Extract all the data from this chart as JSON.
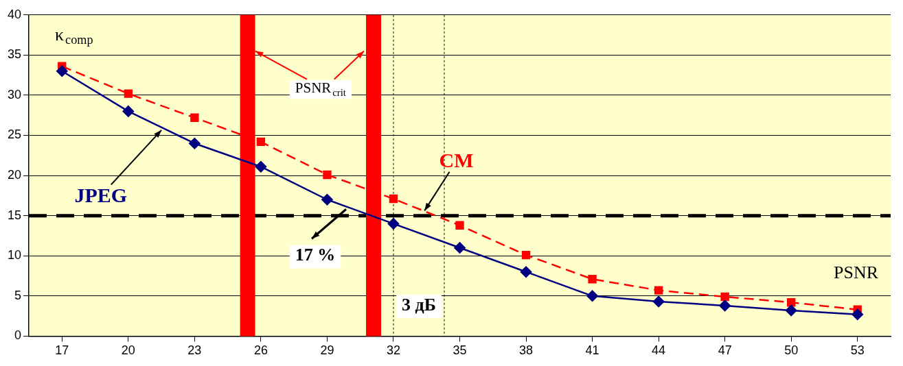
{
  "chart_data": {
    "type": "line",
    "xlabel": "PSNR",
    "ylabel": "κ$_{comp}$",
    "x": [
      17,
      20,
      23,
      26,
      29,
      32,
      35,
      38,
      41,
      44,
      47,
      50,
      53
    ],
    "series": [
      {
        "name": "JPEG",
        "color": "#000080",
        "marker": "diamond",
        "line_style": "solid",
        "values": [
          33,
          28,
          24,
          21.1,
          17,
          14,
          11,
          8,
          5,
          4.3,
          3.8,
          3.2,
          2.7
        ]
      },
      {
        "name": "CM",
        "color": "#ff0000",
        "marker": "square",
        "line_style": "dashed",
        "values": [
          33.6,
          30.2,
          27.2,
          24.2,
          20.1,
          17.1,
          13.8,
          10.1,
          7.1,
          5.7,
          4.9,
          4.2,
          3.3
        ]
      }
    ],
    "xlim": [
      15.5,
      54.5
    ],
    "xticks": [
      17,
      20,
      23,
      26,
      29,
      32,
      35,
      38,
      41,
      44,
      47,
      50,
      53
    ],
    "ylim": [
      0,
      40
    ],
    "yticks": [
      0,
      5,
      10,
      15,
      20,
      25,
      30,
      35,
      40
    ],
    "grid": "y",
    "legend": false,
    "ref_lines": [
      {
        "axis": "y",
        "value": 15,
        "color": "#000000",
        "line_style": "dashed"
      },
      {
        "axis": "x",
        "value": 25.4,
        "color": "#ff0000",
        "line_style": "solid"
      },
      {
        "axis": "x",
        "value": 31.1,
        "color": "#ff0000",
        "line_style": "solid"
      },
      {
        "axis": "x",
        "value": 32,
        "color": "#000000",
        "line_style": "dotted"
      },
      {
        "axis": "x",
        "value": 34.3,
        "color": "#000000",
        "line_style": "dotted"
      }
    ],
    "annotations": [
      {
        "text": "PSNR$_{crit}$",
        "x": 25.75,
        "y": 35.5
      },
      "17 %",
      "3 дБ"
    ]
  }
}
